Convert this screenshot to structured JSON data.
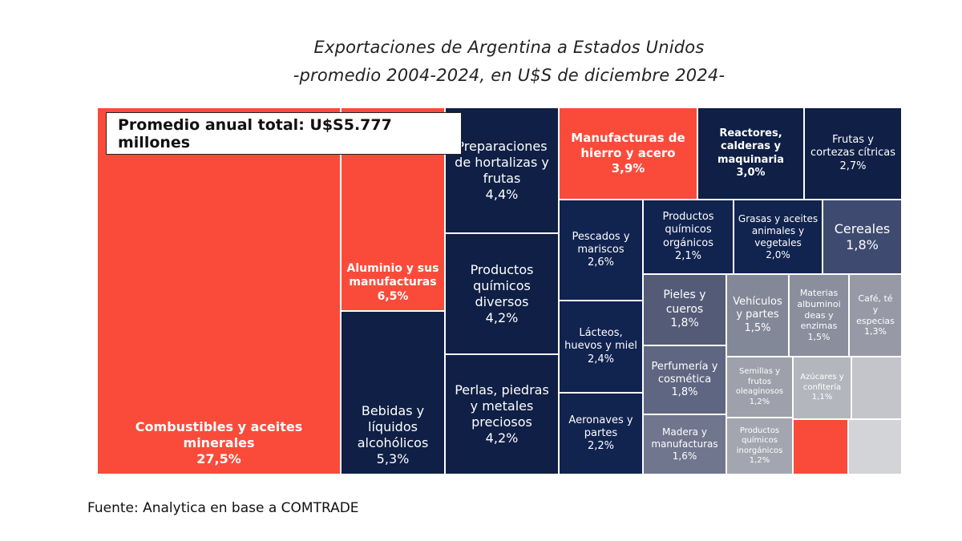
{
  "chart_data": {
    "type": "treemap",
    "title": "Exportaciones de Argentina a Estados Unidos",
    "subtitle": "-promedio 2004-2024, en U$S de diciembre 2024-",
    "annotation": "Promedio anual total: U$S5.777 millones",
    "source": "Fuente: Analytica en base a COMTRADE",
    "unit": "% del total",
    "items": [
      {
        "label": "Combustibles y aceites\nminerales",
        "value": 27.5,
        "value_label": "27,5%",
        "color": "#fa4b3a",
        "bold": true
      },
      {
        "label": "Aluminio y sus\nmanufacturas",
        "value": 6.5,
        "value_label": "6,5%",
        "color": "#fa4b3a",
        "bold": true
      },
      {
        "label": "Bebidas y\nlíquidos\nalcohólicos",
        "value": 5.3,
        "value_label": "5,3%",
        "color": "#0f1f45",
        "bold": false
      },
      {
        "label": "Preparaciones\nde hortalizas y\nfrutas",
        "value": 4.4,
        "value_label": "4,4%",
        "color": "#0f1f45",
        "bold": false
      },
      {
        "label": "Productos\nquímicos\ndiversos",
        "value": 4.2,
        "value_label": "4,2%",
        "color": "#0f1f45",
        "bold": false
      },
      {
        "label": "Perlas, piedras\ny metales\npreciosos",
        "value": 4.2,
        "value_label": "4,2%",
        "color": "#0f1f45",
        "bold": false
      },
      {
        "label": "Manufacturas de\nhierro y acero",
        "value": 3.9,
        "value_label": "3,9%",
        "color": "#fa4b3a",
        "bold": true
      },
      {
        "label": "Reactores,\ncalderas y\nmaquinaria",
        "value": 3.0,
        "value_label": "3,0%",
        "color": "#0f1f45",
        "bold": true
      },
      {
        "label": "Frutas y\ncortezas cítricas",
        "value": 2.7,
        "value_label": "2,7%",
        "color": "#0f1f45",
        "bold": false
      },
      {
        "label": "Pescados y\nmariscos",
        "value": 2.6,
        "value_label": "2,6%",
        "color": "#11234f",
        "bold": false
      },
      {
        "label": "Lácteos,\nhuevos y miel",
        "value": 2.4,
        "value_label": "2,4%",
        "color": "#11234f",
        "bold": false
      },
      {
        "label": "Aeronaves y\npartes",
        "value": 2.2,
        "value_label": "2,2%",
        "color": "#11234f",
        "bold": false
      },
      {
        "label": "Productos\nquímicos\norgánicos",
        "value": 2.1,
        "value_label": "2,1%",
        "color": "#11234f",
        "bold": false
      },
      {
        "label": "Grasas y aceites\nanimales y\nvegetales",
        "value": 2.0,
        "value_label": "2,0%",
        "color": "#11234f",
        "bold": false
      },
      {
        "label": "Cereales",
        "value": 1.8,
        "value_label": "1,8%",
        "color": "#3e4a70",
        "bold": false
      },
      {
        "label": "Pieles y\ncueros",
        "value": 1.8,
        "value_label": "1,8%",
        "color": "#535b77",
        "bold": false
      },
      {
        "label": "Perfumería y\ncosmética",
        "value": 1.8,
        "value_label": "1,8%",
        "color": "#5f6681",
        "bold": false
      },
      {
        "label": "Madera y\nmanufacturas",
        "value": 1.6,
        "value_label": "1,6%",
        "color": "#70768e",
        "bold": false
      },
      {
        "label": "Vehículos\ny partes",
        "value": 1.5,
        "value_label": "1,5%",
        "color": "#838898",
        "bold": false
      },
      {
        "label": "Materias\nalbuminoi\ndeas y\nenzimas",
        "value": 1.5,
        "value_label": "1,5%",
        "color": "#8a8e9d",
        "bold": false
      },
      {
        "label": "Café, té\ny\nespecias",
        "value": 1.3,
        "value_label": "1,3%",
        "color": "#979aa6",
        "bold": false
      },
      {
        "label": "Semillas y\nfrutos\noleaginosos",
        "value": 1.2,
        "value_label": "1,2%",
        "color": "#9ea1ac",
        "bold": false
      },
      {
        "label": "Productos\nquímicos\ninorgánicos",
        "value": 1.2,
        "value_label": "1,2%",
        "color": "#a3a6b0",
        "bold": false
      },
      {
        "label": "Azúcares y\nconfitería",
        "value": 1.1,
        "value_label": "1,1%",
        "color": "#b4b6bd",
        "bold": false
      },
      {
        "label": "",
        "value": null,
        "value_label": "",
        "color": "#c4c5ca",
        "bold": false
      },
      {
        "label": "",
        "value": null,
        "value_label": "",
        "color": "#fa4b3a",
        "bold": false
      },
      {
        "label": "",
        "value": null,
        "value_label": "",
        "color": "#d3d4d8",
        "bold": false
      }
    ]
  }
}
